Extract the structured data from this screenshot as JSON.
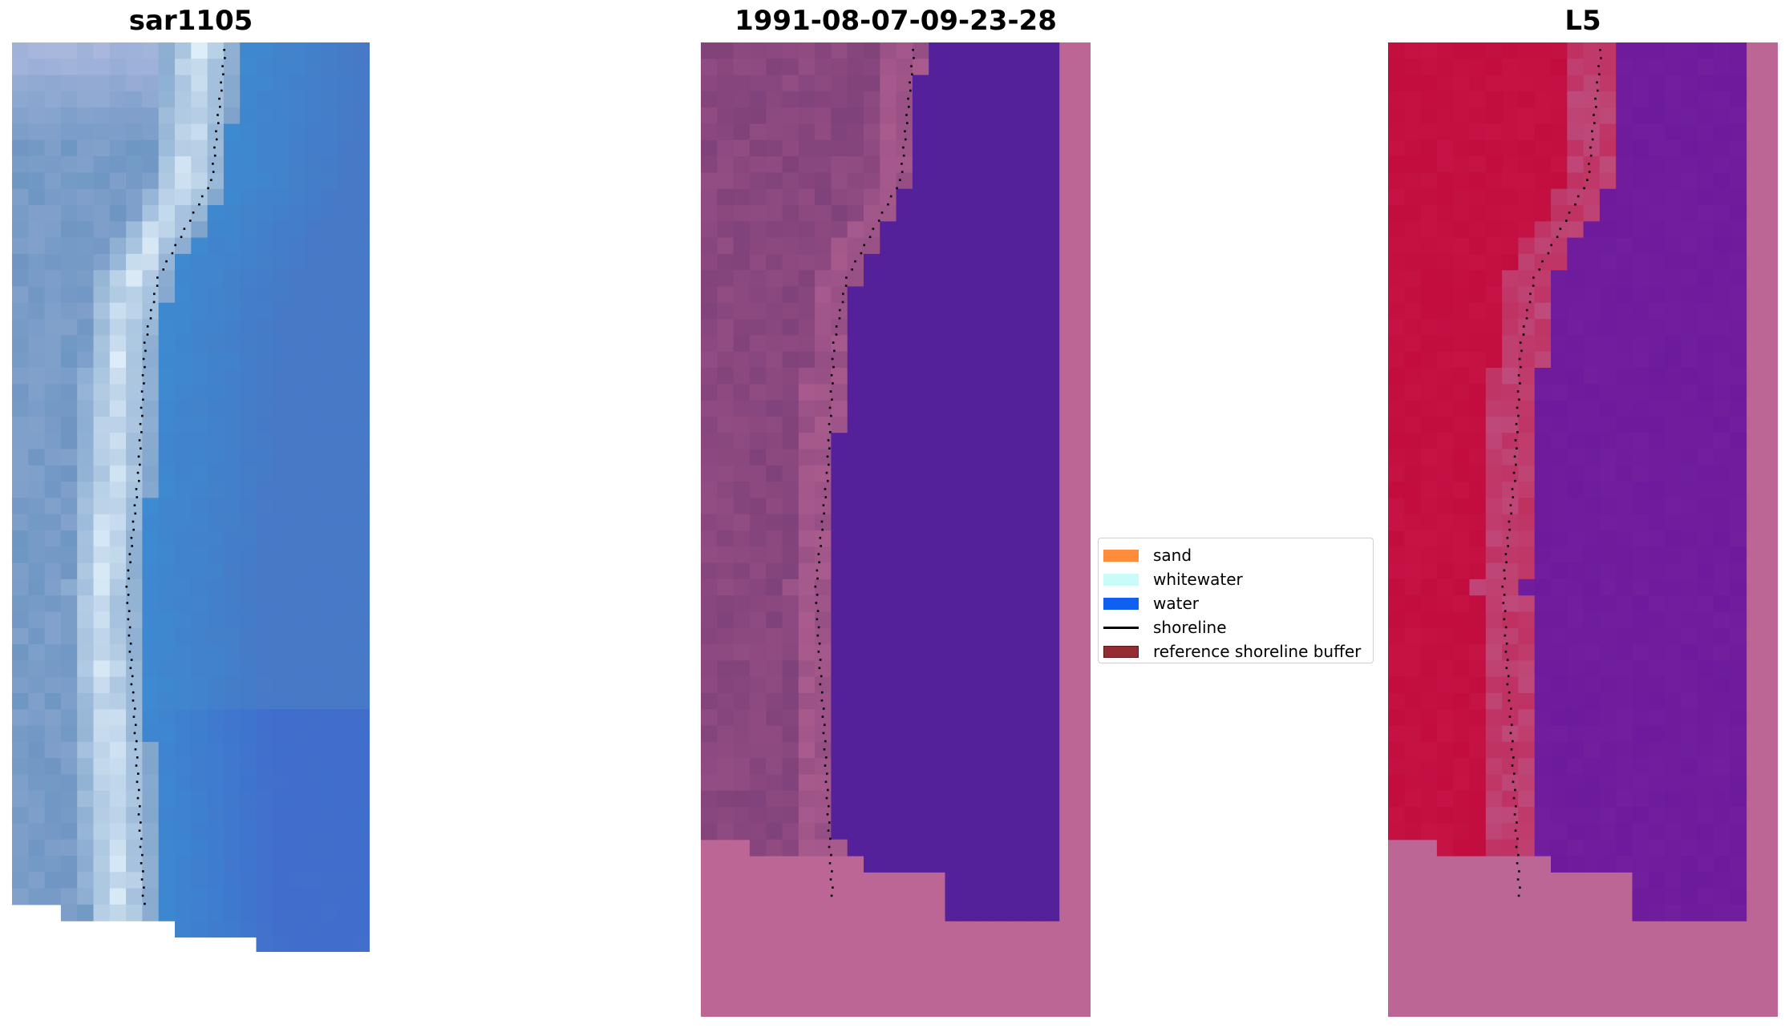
{
  "panels": [
    {
      "title": "sar1105",
      "kind": "rgb"
    },
    {
      "title": "1991-08-07-09-23-28",
      "kind": "classification"
    },
    {
      "title": "L5",
      "kind": "mndwi"
    }
  ],
  "legend": {
    "items": [
      {
        "label": "sand",
        "color": "#ff8c3a",
        "kind": "patch"
      },
      {
        "label": "whitewater",
        "color": "#c9fbfb",
        "kind": "patch"
      },
      {
        "label": "water",
        "color": "#0f5ff0",
        "kind": "patch"
      },
      {
        "label": "shoreline",
        "color": "#000000",
        "kind": "line"
      },
      {
        "label": "reference shoreline buffer",
        "color": "#962c31",
        "kind": "patch"
      }
    ]
  },
  "colors": {
    "mask": "#bc6696",
    "class_water": "#54219a",
    "class_land": "#80427a",
    "index_high": "#c20d3e",
    "index_low": "#6d1a9c",
    "shoreline": "#000000"
  }
}
